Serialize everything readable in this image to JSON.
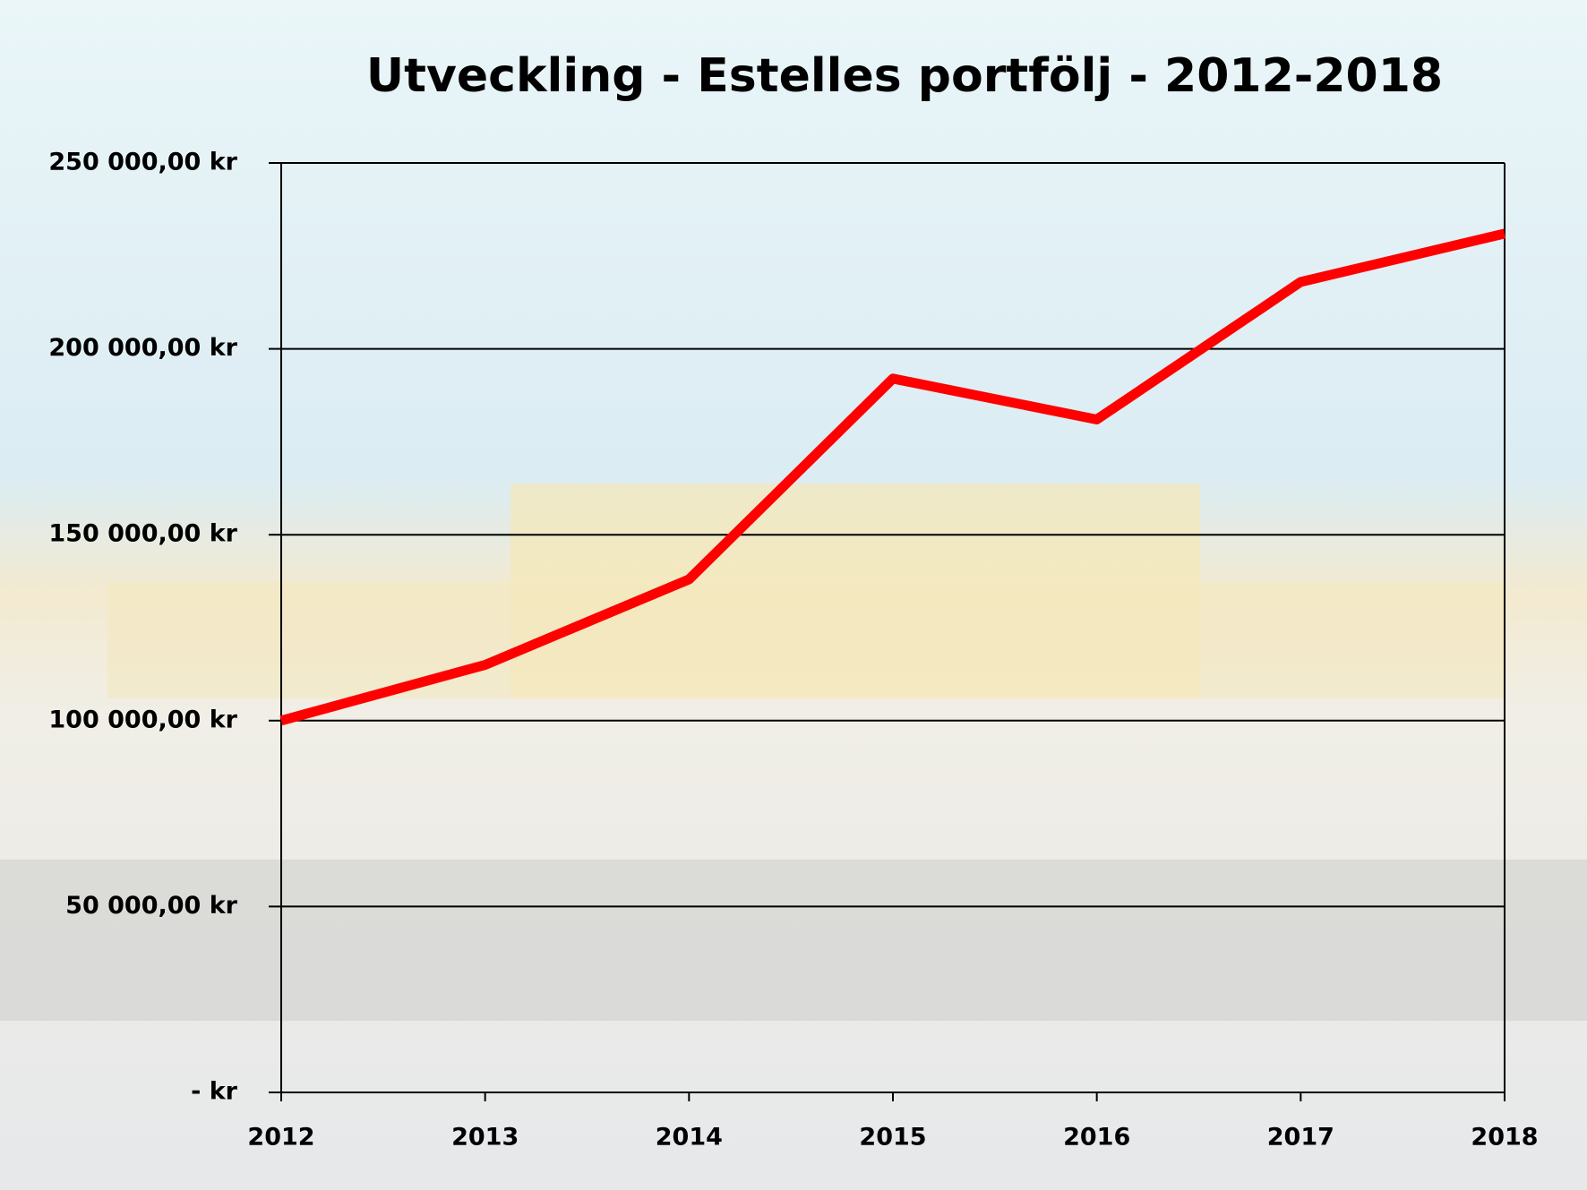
{
  "chart_data": {
    "type": "line",
    "title": "Utveckling - Estelles portfölj - 2012-2018",
    "categories": [
      "2012",
      "2013",
      "2014",
      "2015",
      "2016",
      "2017",
      "2018"
    ],
    "series": [
      {
        "name": "Estelles portfölj",
        "color": "#ff0000",
        "values": [
          100000,
          115000,
          138000,
          192000,
          181000,
          218000,
          231000
        ]
      }
    ],
    "ylim": [
      0,
      250000
    ],
    "yticks": [
      {
        "value": 0,
        "label": "-   kr"
      },
      {
        "value": 50000,
        "label": "50 000,00 kr"
      },
      {
        "value": 100000,
        "label": "100 000,00 kr"
      },
      {
        "value": 150000,
        "label": "150 000,00 kr"
      },
      {
        "value": 200000,
        "label": "200 000,00 kr"
      },
      {
        "value": 250000,
        "label": "250 000,00 kr"
      }
    ],
    "grid": true
  }
}
